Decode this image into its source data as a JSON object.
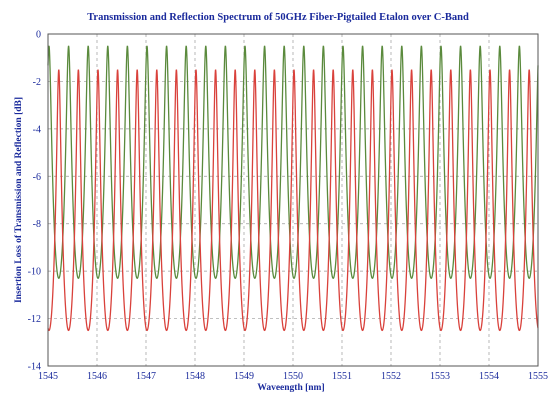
{
  "chart_data": {
    "type": "line",
    "title": "Transmission and Reflection Spectrum of 50GHz Fiber-Pigtailed Etalon over C-Band",
    "xlabel": "Waveength [nm]",
    "ylabel": "Insertion Loss of Transmission and Reflection [dB]",
    "xlim": [
      1545,
      1555
    ],
    "ylim": [
      -14,
      0
    ],
    "xticks": [
      "1545",
      "1546",
      "1547",
      "1548",
      "1549",
      "1550",
      "1551",
      "1552",
      "1553",
      "1554",
      "1555"
    ],
    "yticks": [
      "0",
      "-2",
      "-4",
      "-6",
      "-8",
      "-10",
      "-12",
      "-14"
    ],
    "grid": true,
    "channel_spacing_nm": 0.4,
    "series": [
      {
        "key": "transmission",
        "color": "#5a8a3c",
        "peak_db": -0.5,
        "min_db": -10.3,
        "peak_wavelengths_nm": [
          1545.02,
          1545.42,
          1545.82,
          1546.22,
          1546.62,
          1547.02,
          1547.42,
          1547.82,
          1548.22,
          1548.62,
          1549.02,
          1549.42,
          1549.82,
          1550.22,
          1550.62,
          1551.02,
          1551.42,
          1551.82,
          1552.22,
          1552.62,
          1553.02,
          1553.42,
          1553.82,
          1554.22,
          1554.62
        ]
      },
      {
        "key": "reflection",
        "color": "#d9413b",
        "peak_db": -1.5,
        "min_db": -12.5,
        "peak_wavelengths_nm": [
          1545.22,
          1545.62,
          1546.02,
          1546.42,
          1546.82,
          1547.22,
          1547.62,
          1548.02,
          1548.42,
          1548.82,
          1549.22,
          1549.62,
          1550.02,
          1550.42,
          1550.82,
          1551.22,
          1551.62,
          1552.02,
          1552.42,
          1552.82,
          1553.22,
          1553.62,
          1554.02,
          1554.42,
          1554.82
        ]
      }
    ]
  },
  "colors": {
    "title": "#1a2a9c",
    "axis_text": "#1a2a9c",
    "grid": "#9a9a9a",
    "frame": "#555555"
  }
}
